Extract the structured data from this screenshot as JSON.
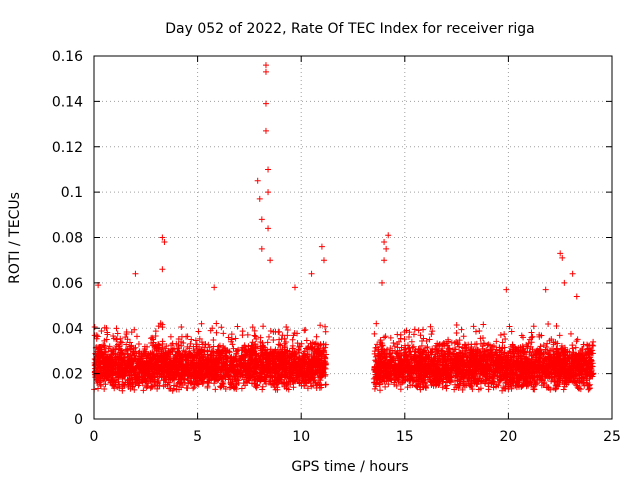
{
  "chart_data": {
    "type": "scatter",
    "title": "Day 052 of 2022, Rate Of TEC Index for receiver riga",
    "xlabel": "GPS time / hours",
    "ylabel": "ROTI / TECUs",
    "xlim": [
      0,
      25
    ],
    "ylim": [
      0,
      0.16
    ],
    "x_ticks": [
      0,
      5,
      10,
      15,
      20,
      25
    ],
    "x_tick_labels": [
      "0",
      "5",
      "10",
      "15",
      "20",
      "25"
    ],
    "y_ticks": [
      0,
      0.02,
      0.04,
      0.06,
      0.08,
      0.1,
      0.12,
      0.14,
      0.16
    ],
    "y_tick_labels": [
      "0",
      "0.02",
      "0.04",
      "0.06",
      "0.08",
      "0.1",
      "0.12",
      "0.14",
      "0.16"
    ],
    "grid": true,
    "marker": "+",
    "color": "#ff0000",
    "series": [
      {
        "name": "ROTI",
        "segments": [
          {
            "x_start": 0.0,
            "x_end": 11.2,
            "baseline_range": [
              0.005,
              0.045
            ]
          },
          {
            "x_start": 13.5,
            "x_end": 24.1,
            "baseline_range": [
              0.005,
              0.045
            ]
          }
        ],
        "peaks": [
          {
            "x": 0.2,
            "y": 0.059
          },
          {
            "x": 2.0,
            "y": 0.064
          },
          {
            "x": 3.3,
            "y": 0.08
          },
          {
            "x": 3.4,
            "y": 0.078
          },
          {
            "x": 3.3,
            "y": 0.066
          },
          {
            "x": 5.8,
            "y": 0.058
          },
          {
            "x": 7.9,
            "y": 0.105
          },
          {
            "x": 8.0,
            "y": 0.097
          },
          {
            "x": 8.1,
            "y": 0.088
          },
          {
            "x": 8.1,
            "y": 0.075
          },
          {
            "x": 8.3,
            "y": 0.156
          },
          {
            "x": 8.3,
            "y": 0.153
          },
          {
            "x": 8.3,
            "y": 0.139
          },
          {
            "x": 8.3,
            "y": 0.127
          },
          {
            "x": 8.4,
            "y": 0.11
          },
          {
            "x": 8.4,
            "y": 0.1
          },
          {
            "x": 8.4,
            "y": 0.084
          },
          {
            "x": 8.5,
            "y": 0.07
          },
          {
            "x": 9.7,
            "y": 0.058
          },
          {
            "x": 10.5,
            "y": 0.064
          },
          {
            "x": 11.0,
            "y": 0.076
          },
          {
            "x": 11.1,
            "y": 0.07
          },
          {
            "x": 14.0,
            "y": 0.078
          },
          {
            "x": 14.1,
            "y": 0.075
          },
          {
            "x": 14.2,
            "y": 0.081
          },
          {
            "x": 14.0,
            "y": 0.07
          },
          {
            "x": 13.9,
            "y": 0.06
          },
          {
            "x": 19.9,
            "y": 0.057
          },
          {
            "x": 21.8,
            "y": 0.057
          },
          {
            "x": 22.5,
            "y": 0.073
          },
          {
            "x": 22.6,
            "y": 0.071
          },
          {
            "x": 22.7,
            "y": 0.06
          },
          {
            "x": 23.1,
            "y": 0.064
          },
          {
            "x": 23.3,
            "y": 0.054
          }
        ]
      }
    ]
  }
}
